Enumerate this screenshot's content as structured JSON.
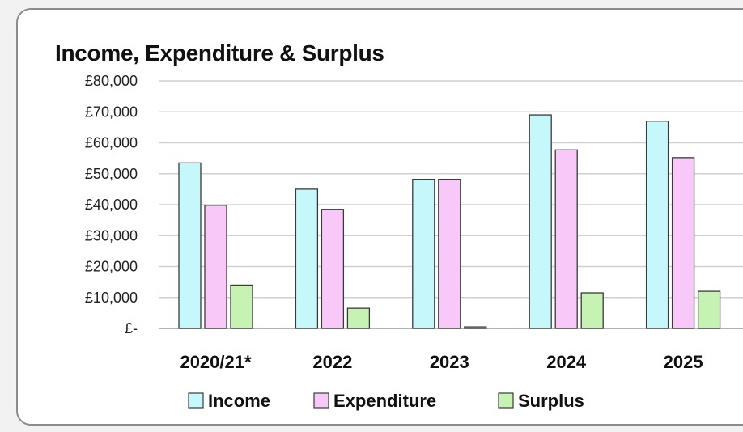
{
  "chart_data": {
    "type": "bar",
    "title": "Income, Expenditure & Surplus",
    "categories": [
      "2020/21*",
      "2022",
      "2023",
      "2024",
      "2025"
    ],
    "series": [
      {
        "name": "Income",
        "color": "#c6f7fb",
        "values": [
          53500,
          45000,
          48200,
          69000,
          67000
        ]
      },
      {
        "name": "Expenditure",
        "color": "#f8c8f8",
        "values": [
          39800,
          38500,
          48200,
          57700,
          55200
        ]
      },
      {
        "name": "Surplus",
        "color": "#c6f2b4",
        "values": [
          14000,
          6500,
          500,
          11500,
          12000
        ]
      }
    ],
    "ylim": [
      0,
      80000
    ],
    "yticks": [
      {
        "value": 80000,
        "label": "£80,000"
      },
      {
        "value": 70000,
        "label": "£70,000"
      },
      {
        "value": 60000,
        "label": "£60,000"
      },
      {
        "value": 50000,
        "label": "£50,000"
      },
      {
        "value": 40000,
        "label": "£40,000"
      },
      {
        "value": 30000,
        "label": "£30,000"
      },
      {
        "value": 20000,
        "label": "£20,000"
      },
      {
        "value": 10000,
        "label": "£10,000"
      },
      {
        "value": 0,
        "label": "£-"
      }
    ],
    "grid": true,
    "legend_position": "bottom"
  }
}
